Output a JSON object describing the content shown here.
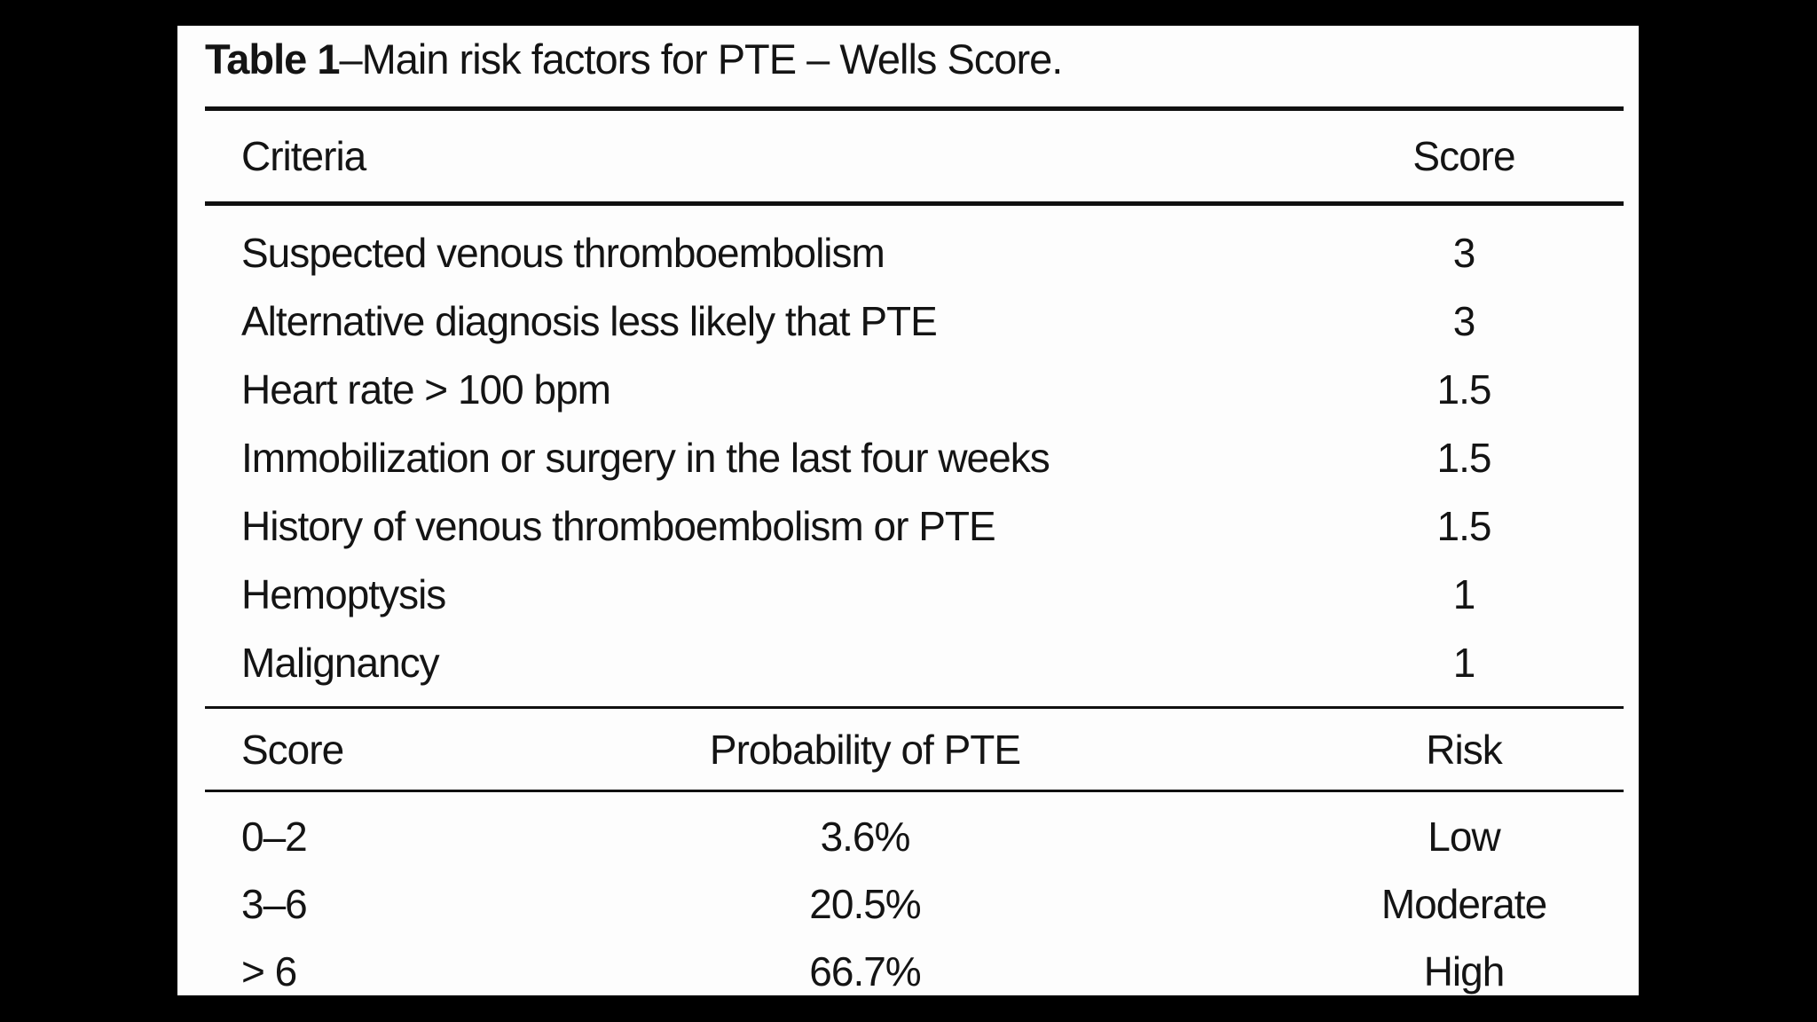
{
  "colors": {
    "background": "#000000",
    "panel": "#fdfdfd",
    "text": "#141414",
    "rule": "#101010"
  },
  "figure": {
    "title": {
      "label": "Table 1",
      "caption": "–Main risk factors for PTE – Wells Score."
    },
    "criteria_table": {
      "headers": {
        "criteria": "Criteria",
        "score": "Score"
      },
      "rows": [
        {
          "criteria": "Suspected venous thromboembolism",
          "score": "3"
        },
        {
          "criteria": "Alternative diagnosis less likely that PTE",
          "score": "3"
        },
        {
          "criteria": "Heart rate > 100 bpm",
          "score": "1.5"
        },
        {
          "criteria": "Immobilization or surgery in the last four weeks",
          "score": "1.5"
        },
        {
          "criteria": "History of venous thromboembolism or PTE",
          "score": "1.5"
        },
        {
          "criteria": "Hemoptysis",
          "score": "1"
        },
        {
          "criteria": "Malignancy",
          "score": "1"
        }
      ]
    },
    "risk_table": {
      "headers": {
        "score": "Score",
        "probability": "Probability of PTE",
        "risk": "Risk"
      },
      "rows": [
        {
          "score": "0–2",
          "probability": "3.6%",
          "risk": "Low"
        },
        {
          "score": "3–6",
          "probability": "20.5%",
          "risk": "Moderate"
        },
        {
          "score": "> 6",
          "probability": "66.7%",
          "risk": "High"
        }
      ]
    }
  }
}
